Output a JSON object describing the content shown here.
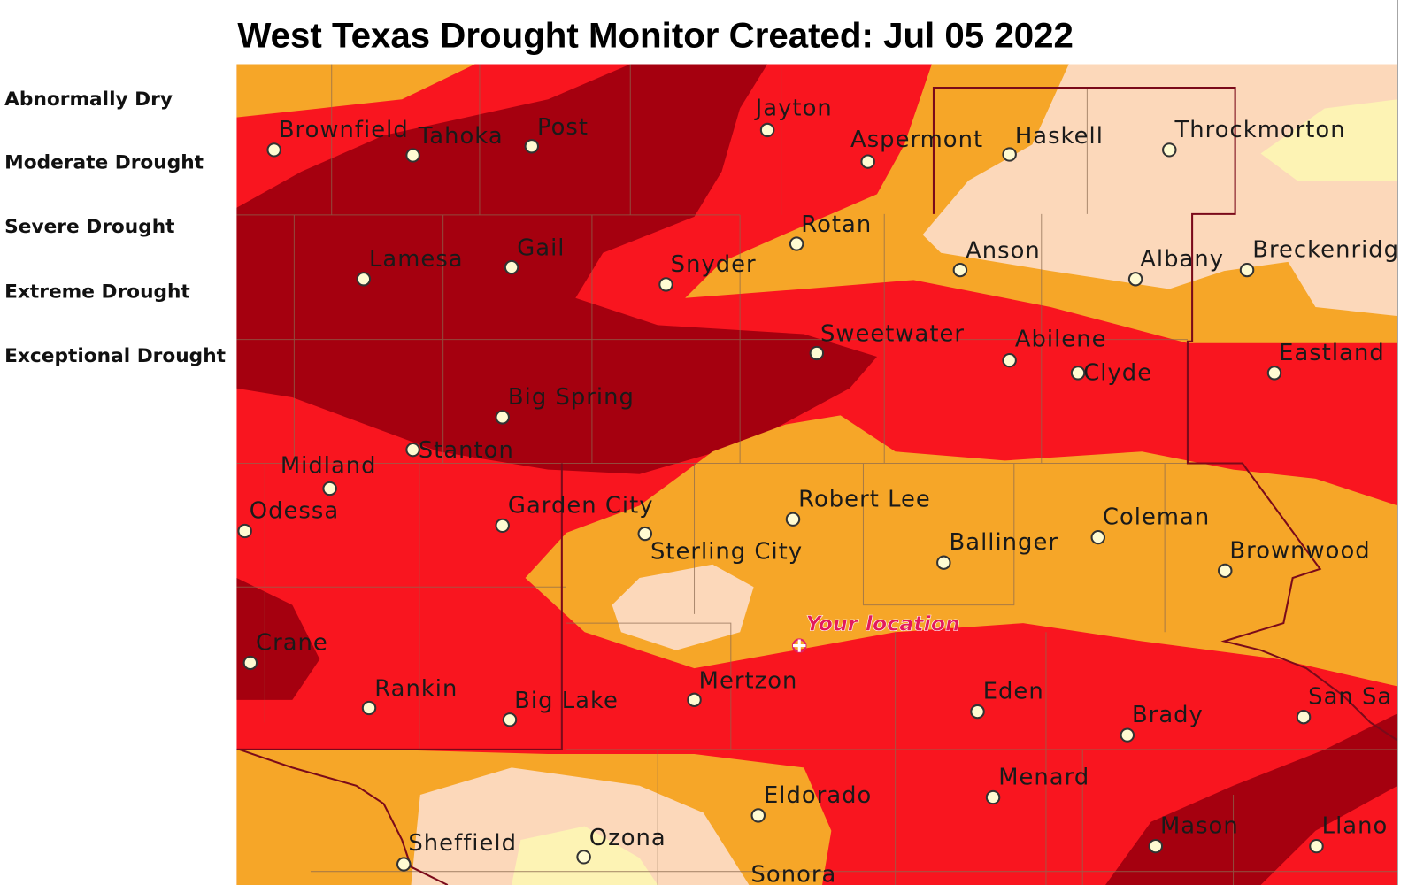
{
  "title": "West Texas Drought Monitor Created: Jul 05 2022",
  "legend": [
    "Abnormally Dry",
    "Moderate Drought",
    "Severe Drought",
    "Extreme Drought",
    "Exceptional Drought"
  ],
  "cities": [
    "Brownfield",
    "Tahoka",
    "Post",
    "Jayton",
    "Aspermont",
    "Haskell",
    "Throckmorton",
    "Lamesa",
    "Gail",
    "Snyder",
    "Rotan",
    "Anson",
    "Albany",
    "Breckenridg",
    "Sweetwater",
    "Abilene",
    "Clyde",
    "Eastland",
    "Big Spring",
    "Stanton",
    "Midland",
    "Odessa",
    "Garden City",
    "Sterling City",
    "Robert Lee",
    "Ballinger",
    "Coleman",
    "Brownwood",
    "Crane",
    "Rankin",
    "Big Lake",
    "Mertzon",
    "Eden",
    "Brady",
    "San Sa",
    "Menard",
    "Eldorado",
    "Mason",
    "Llano",
    "Sheffield",
    "Ozona",
    "Sonora"
  ],
  "marker_label": "Your location"
}
